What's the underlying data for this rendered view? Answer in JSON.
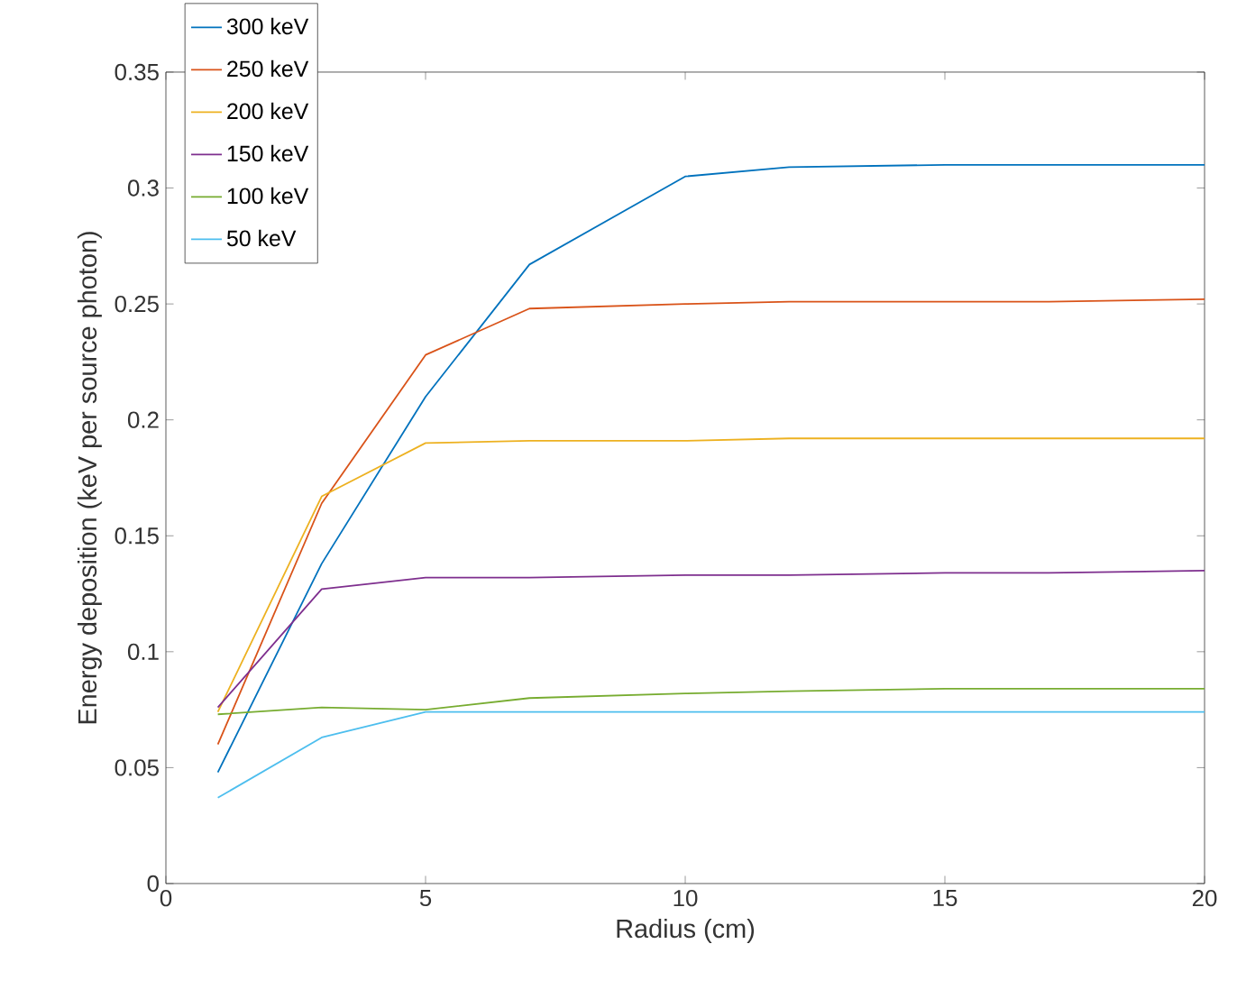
{
  "chart_data": {
    "type": "line",
    "xlabel": "Radius (cm)",
    "ylabel": "Energy deposition (keV per source photon)",
    "x": [
      1,
      3,
      5,
      7,
      10,
      12,
      15,
      17,
      20
    ],
    "series": [
      {
        "name": "300 keV",
        "color": "#0072bd",
        "values": [
          0.048,
          0.138,
          0.21,
          0.267,
          0.305,
          0.309,
          0.31,
          0.31,
          0.31
        ]
      },
      {
        "name": "250 keV",
        "color": "#d95319",
        "values": [
          0.06,
          0.164,
          0.228,
          0.248,
          0.25,
          0.251,
          0.251,
          0.251,
          0.252
        ]
      },
      {
        "name": "200 keV",
        "color": "#edb120",
        "values": [
          0.074,
          0.167,
          0.19,
          0.191,
          0.191,
          0.192,
          0.192,
          0.192,
          0.192
        ]
      },
      {
        "name": "150 keV",
        "color": "#7e2f8e",
        "values": [
          0.076,
          0.127,
          0.132,
          0.132,
          0.133,
          0.133,
          0.134,
          0.134,
          0.135
        ]
      },
      {
        "name": "100 keV",
        "color": "#77ac30",
        "values": [
          0.073,
          0.076,
          0.075,
          0.08,
          0.082,
          0.083,
          0.084,
          0.084,
          0.084
        ]
      },
      {
        "name": "50 keV",
        "color": "#4dbeee",
        "values": [
          0.037,
          0.063,
          0.074,
          0.074,
          0.074,
          0.074,
          0.074,
          0.074,
          0.074
        ]
      }
    ],
    "xlim": [
      0,
      20
    ],
    "xticks": [
      0,
      5,
      10,
      15,
      20
    ],
    "ylim": [
      0,
      0.35
    ],
    "yticks": [
      0,
      0.05,
      0.1,
      0.15,
      0.2,
      0.25,
      0.3,
      0.35
    ],
    "grid": false,
    "legend": "top left",
    "marker": "none",
    "line_style": "solid"
  }
}
